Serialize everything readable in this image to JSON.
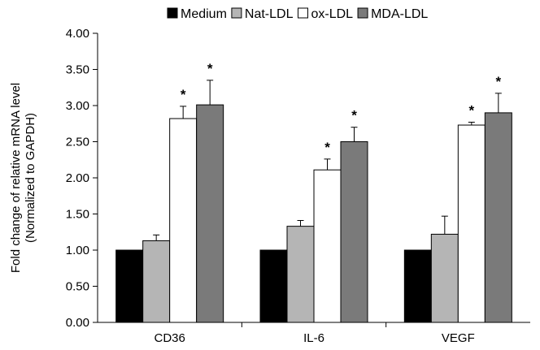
{
  "chart_data": {
    "type": "bar",
    "title": "",
    "xlabel": "",
    "ylabel": [
      "Fold change of relative mRNA level",
      "(Normalized to GAPDH)"
    ],
    "ylim": [
      0,
      4
    ],
    "y_tick_step": 0.5,
    "y_tick_labels": [
      "0.00",
      "0.50",
      "1.00",
      "1.50",
      "2.00",
      "2.50",
      "3.00",
      "3.50",
      "4.00"
    ],
    "grid": false,
    "legend_position": "top",
    "categories": [
      "CD36",
      "IL-6",
      "VEGF"
    ],
    "series": [
      {
        "name": "Medium",
        "color": "#000000",
        "values": [
          1.0,
          1.0,
          1.0
        ],
        "errors": [
          0,
          0,
          0
        ],
        "significant": [
          false,
          false,
          false
        ]
      },
      {
        "name": "Nat-LDL",
        "color": "#b5b5b5",
        "values": [
          1.13,
          1.33,
          1.22
        ],
        "errors": [
          0.08,
          0.08,
          0.25
        ],
        "significant": [
          false,
          false,
          false
        ]
      },
      {
        "name": "ox-LDL",
        "color": "#ffffff",
        "values": [
          2.82,
          2.11,
          2.73
        ],
        "errors": [
          0.17,
          0.15,
          0.04
        ],
        "significant": [
          true,
          true,
          true
        ]
      },
      {
        "name": "MDA-LDL",
        "color": "#7a7a7a",
        "values": [
          3.01,
          2.5,
          2.9
        ],
        "errors": [
          0.34,
          0.2,
          0.27
        ],
        "significant": [
          true,
          true,
          true
        ]
      }
    ],
    "significance_marker": "*"
  }
}
